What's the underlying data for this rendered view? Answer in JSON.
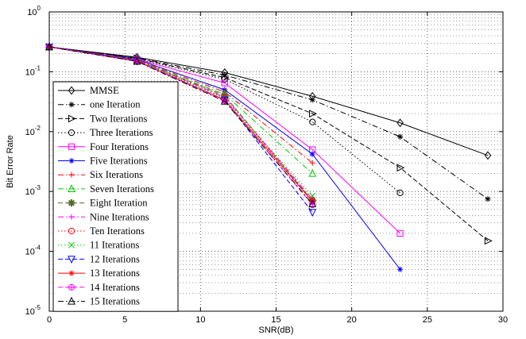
{
  "chart_data": {
    "type": "line",
    "title": "",
    "xlabel": "SNR(dB)",
    "ylabel": "Bit Error Rate",
    "xlim": [
      0,
      30
    ],
    "ylim": [
      1e-05,
      1
    ],
    "yscale": "log",
    "grid": true,
    "x_ticks": [
      "0",
      "5",
      "10",
      "15",
      "20",
      "25",
      "30"
    ],
    "y_ticks": [
      {
        "base": "10",
        "exp": "0"
      },
      {
        "base": "10",
        "exp": "-1"
      },
      {
        "base": "10",
        "exp": "-2"
      },
      {
        "base": "10",
        "exp": "-3"
      },
      {
        "base": "10",
        "exp": "-4"
      },
      {
        "base": "10",
        "exp": "-5"
      }
    ],
    "legend_position": "left",
    "series": [
      {
        "name": "MMSE",
        "color": "#000000",
        "dash": "solid",
        "marker": "diamond",
        "x": [
          0,
          5.8,
          11.6,
          17.4,
          23.2,
          29
        ],
        "y": [
          0.26,
          0.175,
          0.097,
          0.039,
          0.014,
          0.004
        ]
      },
      {
        "name": "one Iteration",
        "color": "#000000",
        "dash": "dashdot",
        "marker": "star",
        "x": [
          0,
          5.8,
          11.6,
          17.4,
          23.2,
          29
        ],
        "y": [
          0.26,
          0.17,
          0.088,
          0.034,
          0.0082,
          0.00075
        ]
      },
      {
        "name": "Two Iterations",
        "color": "#000000",
        "dash": "dashed",
        "marker": "tri-right",
        "x": [
          0,
          5.8,
          11.6,
          17.4,
          23.2,
          29
        ],
        "y": [
          0.26,
          0.168,
          0.08,
          0.02,
          0.0025,
          0.00015
        ]
      },
      {
        "name": "Three Iterations",
        "color": "#000000",
        "dash": "dotted",
        "marker": "circle",
        "x": [
          0,
          5.8,
          11.6,
          17.4,
          23.2
        ],
        "y": [
          0.26,
          0.165,
          0.075,
          0.0145,
          0.00095
        ]
      },
      {
        "name": "Four Iterations",
        "color": "#ff00ff",
        "dash": "solid",
        "marker": "square",
        "x": [
          0,
          5.8,
          11.6,
          17.4,
          23.2
        ],
        "y": [
          0.26,
          0.162,
          0.065,
          0.005,
          0.0002
        ]
      },
      {
        "name": "Five Iterations",
        "color": "#0000ff",
        "dash": "solid",
        "marker": "star",
        "x": [
          0,
          5.8,
          11.6,
          17.4,
          23.2
        ],
        "y": [
          0.26,
          0.16,
          0.05,
          0.0042,
          5e-05
        ]
      },
      {
        "name": "Six Iterations",
        "color": "#ff0000",
        "dash": "dashdot",
        "marker": "plus",
        "x": [
          0,
          5.8,
          11.6,
          17.4
        ],
        "y": [
          0.26,
          0.158,
          0.046,
          0.003
        ]
      },
      {
        "name": "Seven Iterations",
        "color": "#00cc00",
        "dash": "dashdot",
        "marker": "triangle",
        "x": [
          0,
          5.8,
          11.6,
          17.4
        ],
        "y": [
          0.26,
          0.156,
          0.042,
          0.002
        ]
      },
      {
        "name": "Eight Iteration",
        "color": "#556b2f",
        "dash": "dashed",
        "marker": "asterisk",
        "x": [
          0,
          5.8,
          11.6,
          17.4
        ],
        "y": [
          0.26,
          0.155,
          0.04,
          0.0007
        ]
      },
      {
        "name": "Nine Iterations",
        "color": "#ff00ff",
        "dash": "dashdot",
        "marker": "plus",
        "x": [
          0,
          5.8,
          11.6,
          17.4
        ],
        "y": [
          0.26,
          0.154,
          0.038,
          0.00075
        ]
      },
      {
        "name": "Ten Iterations",
        "color": "#ff0000",
        "dash": "dotted",
        "marker": "circle",
        "x": [
          0,
          5.8,
          11.6,
          17.4
        ],
        "y": [
          0.26,
          0.153,
          0.037,
          0.0007
        ]
      },
      {
        "name": "11 Iterations",
        "color": "#00cc00",
        "dash": "dotted",
        "marker": "x",
        "x": [
          0,
          5.8,
          11.6,
          17.4
        ],
        "y": [
          0.26,
          0.152,
          0.036,
          0.00085
        ]
      },
      {
        "name": "12 Iterations",
        "color": "#0000ff",
        "dash": "dashed",
        "marker": "tri-down",
        "x": [
          0,
          5.8,
          11.6,
          17.4
        ],
        "y": [
          0.26,
          0.151,
          0.034,
          0.00045
        ]
      },
      {
        "name": "13  Iterations",
        "color": "#ff0000",
        "dash": "solid",
        "marker": "star",
        "x": [
          0,
          5.8,
          11.6,
          17.4
        ],
        "y": [
          0.26,
          0.15,
          0.034,
          0.00068
        ]
      },
      {
        "name": "14 Iterations",
        "color": "#ff00ff",
        "dash": "dashed",
        "marker": "circle-star",
        "x": [
          0,
          5.8,
          11.6,
          17.4
        ],
        "y": [
          0.26,
          0.15,
          0.033,
          0.0006
        ]
      },
      {
        "name": "15 Iterations",
        "color": "#000000",
        "dash": "dashdot",
        "marker": "triangle",
        "x": [
          0,
          5.8,
          11.6,
          17.4
        ],
        "y": [
          0.26,
          0.149,
          0.032,
          0.00062
        ]
      }
    ]
  }
}
